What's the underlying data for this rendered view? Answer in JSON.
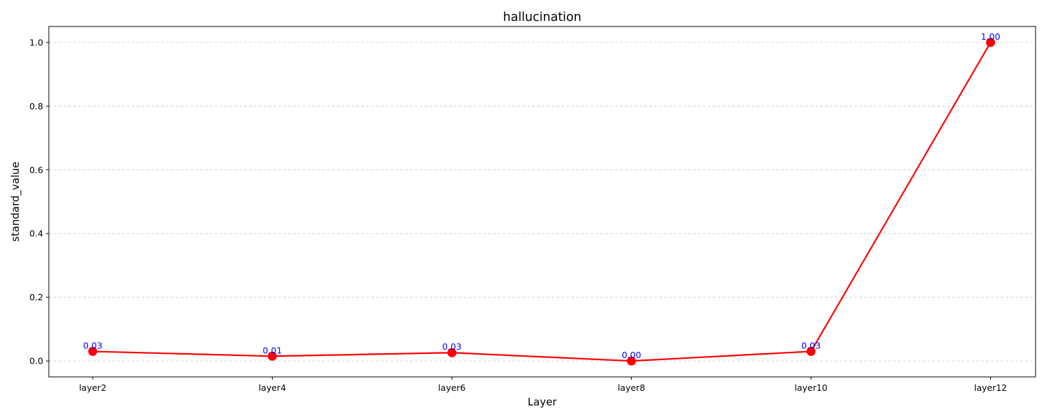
{
  "chart_data": {
    "type": "line",
    "title": "hallucination",
    "xlabel": "Layer",
    "ylabel": "standard_value",
    "categories": [
      "layer2",
      "layer4",
      "layer6",
      "layer8",
      "layer10",
      "layer12"
    ],
    "values": [
      0.03,
      0.015,
      0.026,
      0.0,
      0.03,
      1.0
    ],
    "data_labels": [
      "0.03",
      "0.01",
      "0.03",
      "0.00",
      "0.03",
      "1.00"
    ],
    "yticks": [
      0.0,
      0.2,
      0.4,
      0.6,
      0.8,
      1.0
    ],
    "ytick_labels": [
      "0.0",
      "0.2",
      "0.4",
      "0.6",
      "0.8",
      "1.0"
    ],
    "ylim": [
      -0.05,
      1.05
    ],
    "grid": "horizontal-dashed",
    "line_color": "#ff0000",
    "marker_color": "#ff0000",
    "label_color": "#0000ff",
    "grid_color": "#c8c8c8"
  }
}
